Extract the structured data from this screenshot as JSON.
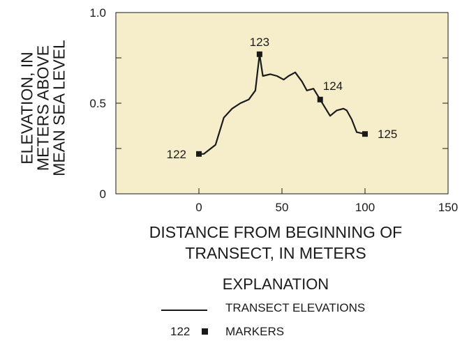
{
  "chart_data": {
    "type": "line",
    "xlabel": [
      "DISTANCE FROM BEGINNING OF",
      "TRANSECT, IN METERS"
    ],
    "ylabel": [
      "ELEVATION, IN",
      "METERS ABOVE",
      "MEAN SEA LEVEL"
    ],
    "xlim": [
      -50,
      150
    ],
    "ylim": [
      0,
      1.0
    ],
    "x_ticks": [
      0,
      50,
      100,
      150
    ],
    "x_tick_labels": [
      "0",
      "50",
      "100",
      "150"
    ],
    "y_ticks": [
      0,
      0.25,
      0.5,
      0.75,
      1.0
    ],
    "y_tick_labels": [
      "0",
      "",
      "0.5",
      "",
      "1.0"
    ],
    "grid": false,
    "plot_background": "#f6eecb",
    "series": [
      {
        "name": "TRANSECT ELEVATIONS",
        "x": [
          0,
          3,
          10,
          15,
          20,
          25,
          30,
          34,
          36.5,
          38.5,
          43,
          47,
          51,
          54,
          58,
          62,
          65,
          69,
          73,
          79,
          83,
          87,
          89,
          92,
          95,
          100
        ],
        "y": [
          0.22,
          0.22,
          0.27,
          0.42,
          0.47,
          0.5,
          0.52,
          0.57,
          0.77,
          0.65,
          0.66,
          0.65,
          0.63,
          0.65,
          0.67,
          0.62,
          0.57,
          0.58,
          0.52,
          0.43,
          0.46,
          0.47,
          0.46,
          0.41,
          0.34,
          0.33
        ]
      }
    ],
    "markers": [
      {
        "label": "122",
        "x": 0,
        "y": 0.22
      },
      {
        "label": "123",
        "x": 36.5,
        "y": 0.77
      },
      {
        "label": "124",
        "x": 73,
        "y": 0.52
      },
      {
        "label": "125",
        "x": 100,
        "y": 0.33
      }
    ]
  },
  "explanation": {
    "title": "EXPLANATION",
    "line_label": "TRANSECT ELEVATIONS",
    "marker_example": "122",
    "marker_label": "MARKERS"
  }
}
